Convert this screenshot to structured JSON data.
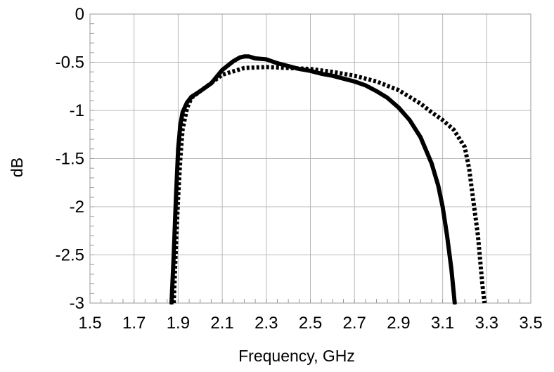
{
  "chart_data": {
    "type": "line",
    "title": "",
    "xlabel": "Frequency, GHz",
    "ylabel": "dB",
    "xlim": [
      1.5,
      3.5
    ],
    "ylim": [
      -3,
      0
    ],
    "xticks": [
      "1.5",
      "1.7",
      "1.9",
      "2.1",
      "2.3",
      "2.5",
      "2.7",
      "2.9",
      "3.1",
      "3.3",
      "3.5"
    ],
    "yticks": [
      "0",
      "-0.5",
      "-1",
      "-1.5",
      "-2",
      "-2.5",
      "-3"
    ],
    "grid": true,
    "legend": "none",
    "series": [
      {
        "style": "solid",
        "color": "#000000",
        "x": [
          1.87,
          1.88,
          1.89,
          1.9,
          1.91,
          1.92,
          1.94,
          1.96,
          2.0,
          2.05,
          2.1,
          2.15,
          2.18,
          2.2,
          2.22,
          2.25,
          2.3,
          2.35,
          2.4,
          2.45,
          2.5,
          2.55,
          2.6,
          2.65,
          2.7,
          2.75,
          2.8,
          2.85,
          2.9,
          2.95,
          3.0,
          3.05,
          3.08,
          3.1,
          3.12,
          3.14,
          3.155
        ],
        "y": [
          -3.0,
          -2.5,
          -1.9,
          -1.4,
          -1.15,
          -1.02,
          -0.92,
          -0.86,
          -0.8,
          -0.72,
          -0.58,
          -0.49,
          -0.45,
          -0.44,
          -0.44,
          -0.46,
          -0.47,
          -0.51,
          -0.54,
          -0.57,
          -0.59,
          -0.62,
          -0.64,
          -0.67,
          -0.7,
          -0.74,
          -0.8,
          -0.87,
          -0.97,
          -1.1,
          -1.28,
          -1.55,
          -1.78,
          -2.0,
          -2.3,
          -2.65,
          -3.0
        ]
      },
      {
        "style": "dotted",
        "color": "#000000",
        "x": [
          1.88,
          1.89,
          1.9,
          1.91,
          1.92,
          1.94,
          1.96,
          2.0,
          2.1,
          2.2,
          2.3,
          2.4,
          2.5,
          2.6,
          2.7,
          2.8,
          2.9,
          3.0,
          3.05,
          3.1,
          3.15,
          3.2,
          3.22,
          3.24,
          3.26,
          3.27,
          3.28,
          3.29
        ],
        "y": [
          -3.0,
          -2.4,
          -1.9,
          -1.5,
          -1.2,
          -0.98,
          -0.87,
          -0.8,
          -0.63,
          -0.56,
          -0.55,
          -0.56,
          -0.57,
          -0.6,
          -0.64,
          -0.7,
          -0.79,
          -0.93,
          -1.02,
          -1.1,
          -1.2,
          -1.38,
          -1.6,
          -1.95,
          -2.3,
          -2.55,
          -2.8,
          -3.0
        ]
      }
    ]
  }
}
